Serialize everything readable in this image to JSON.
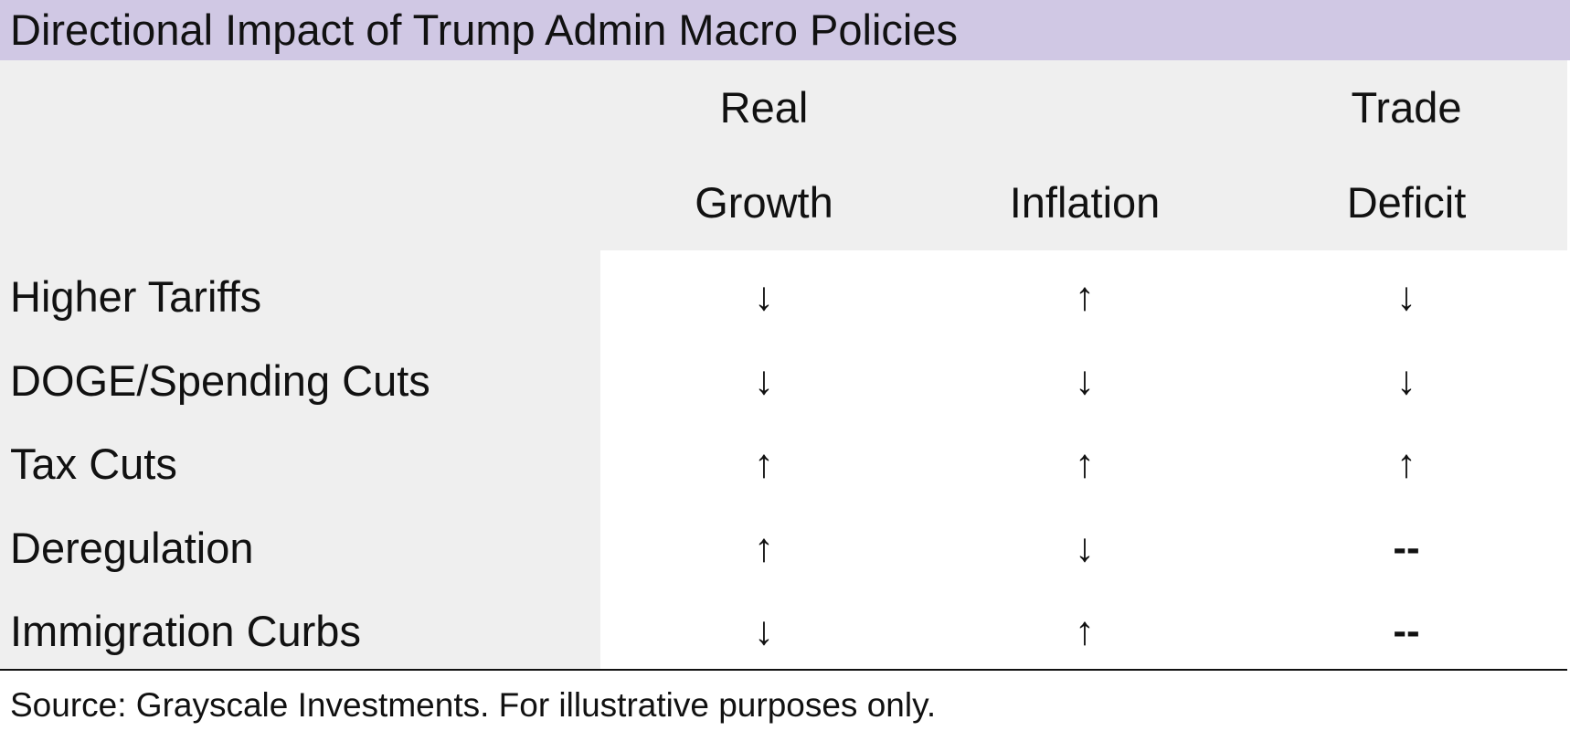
{
  "header": {
    "title": "Directional Impact of Trump Admin Macro Policies"
  },
  "table": {
    "columns": [
      "Real Growth",
      "Inflation",
      "Trade Deficit"
    ],
    "rows": [
      {
        "label": "Higher Tariffs",
        "cells": [
          "↓",
          "↑",
          "↓"
        ]
      },
      {
        "label": "DOGE/Spending Cuts",
        "cells": [
          "↓",
          "↓",
          "↓"
        ]
      },
      {
        "label": "Tax Cuts",
        "cells": [
          "↑",
          "↑",
          "↑"
        ]
      },
      {
        "label": "Deregulation",
        "cells": [
          "↑",
          "↓",
          "--"
        ]
      },
      {
        "label": "Immigration Curbs",
        "cells": [
          "↓",
          "↑",
          "--"
        ]
      }
    ]
  },
  "footer": {
    "source": "Source: Grayscale Investments. For illustrative purposes only."
  }
}
